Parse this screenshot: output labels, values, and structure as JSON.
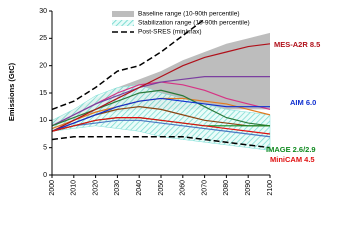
{
  "chart_data": {
    "type": "line",
    "ylabel": "Emissions (GtC)",
    "xlim": [
      2000,
      2100
    ],
    "ylim": [
      0,
      30
    ],
    "xticks": [
      2000,
      2010,
      2020,
      2030,
      2040,
      2050,
      2060,
      2070,
      2080,
      2090,
      2100
    ],
    "yticks": [
      0,
      5,
      10,
      15,
      20,
      25,
      30
    ],
    "x": [
      2000,
      2010,
      2020,
      2030,
      2040,
      2050,
      2060,
      2070,
      2080,
      2090,
      2100
    ],
    "bands": [
      {
        "name": "Baseline range (10-90th percentile)",
        "color": "#bdbdbd",
        "lower": [
          9,
          10,
          11,
          11.5,
          12,
          12,
          12,
          12,
          12,
          12,
          12
        ],
        "upper": [
          10,
          12,
          14,
          16,
          17.5,
          19,
          21,
          22.5,
          24,
          25,
          26
        ]
      },
      {
        "name": "Stabilization range (10-90th percentile)",
        "color": "#7fe0d8",
        "lower": [
          8,
          8.5,
          9,
          8.5,
          8,
          7,
          6.5,
          6,
          5.5,
          5,
          4.5
        ],
        "upper": [
          10,
          12,
          14.5,
          16,
          16.5,
          15,
          14,
          13,
          12,
          11.5,
          11
        ]
      }
    ],
    "envelope": {
      "name": "Post-SRES (min/max)",
      "color": "#000000",
      "upper": [
        12,
        13.5,
        16,
        19,
        20,
        22.5,
        25.5,
        28.5,
        null,
        null,
        null
      ],
      "lower": [
        6.5,
        7,
        7,
        7,
        7,
        7,
        7,
        6.5,
        6,
        5.5,
        5
      ]
    },
    "series": [
      {
        "color": "#d63384",
        "values": [
          9,
          11,
          13,
          15,
          16.5,
          17,
          16.5,
          15.5,
          14,
          13,
          12
        ]
      },
      {
        "color": "#7b3fa0",
        "values": [
          9,
          11,
          13,
          14.5,
          16,
          17,
          17.5,
          18,
          18,
          18,
          18
        ]
      },
      {
        "color": "#e07a20",
        "values": [
          8.5,
          10,
          11.5,
          12.5,
          13.5,
          14,
          14,
          13.5,
          13,
          12,
          11
        ]
      },
      {
        "color": "#2a7a3a",
        "values": [
          9,
          10.5,
          12,
          13.5,
          15,
          15.5,
          14.5,
          12.5,
          10.5,
          9.5,
          9
        ]
      },
      {
        "color": "#8b4513",
        "values": [
          8,
          9.5,
          11,
          12,
          12.5,
          12,
          11,
          10,
          9.5,
          9,
          9
        ]
      },
      {
        "color": "#4a78c2",
        "values": [
          8,
          9,
          9.5,
          10,
          10,
          9.5,
          9,
          8.5,
          8,
          7.5,
          7
        ]
      },
      {
        "name": "MES-A2R 8.5",
        "color": "#b0101a",
        "values": [
          8,
          10,
          12,
          14,
          16,
          18,
          20,
          21.5,
          22.5,
          23.5,
          24
        ]
      },
      {
        "name": "AIM  6.0",
        "color": "#1030d0",
        "values": [
          8,
          9.5,
          11,
          12.5,
          13.5,
          14,
          13.5,
          13,
          12.5,
          12.5,
          12.5
        ]
      },
      {
        "name": "IMAGE 2.6/2.9",
        "color": "#108a20",
        "values": [
          8,
          9,
          10,
          10.5,
          10.5,
          10,
          9.5,
          9,
          9,
          9,
          9
        ]
      },
      {
        "name": "MiniCAM 4.5",
        "color": "#e01010",
        "values": [
          8,
          9,
          10,
          10.5,
          10.5,
          10,
          9.5,
          9,
          8.5,
          8,
          7.5
        ]
      }
    ]
  }
}
